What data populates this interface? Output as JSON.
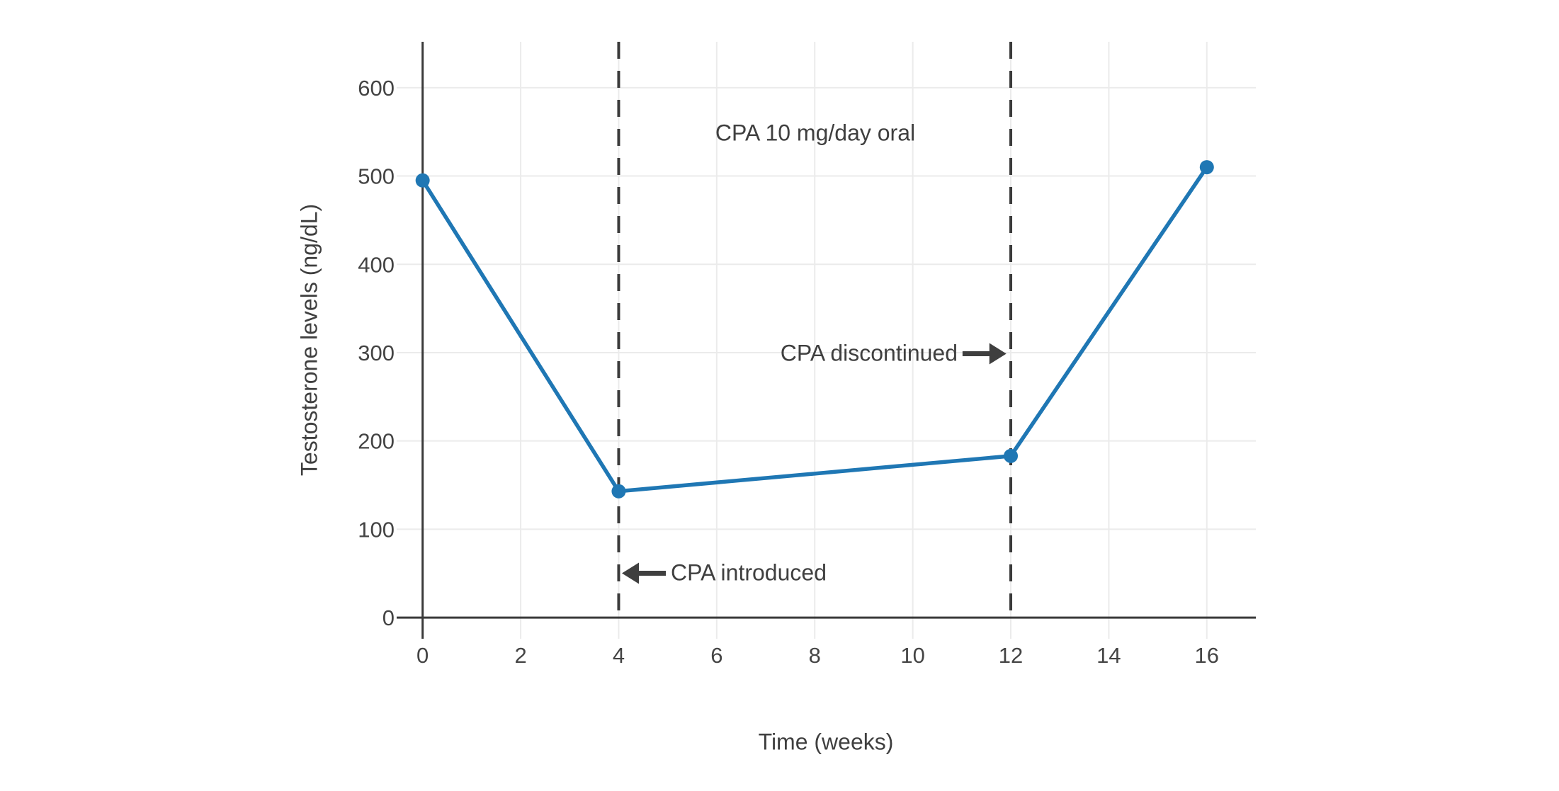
{
  "chart_data": {
    "type": "line",
    "series": [
      {
        "x": [
          0,
          4,
          12,
          16
        ],
        "values": [
          495,
          143,
          183,
          510
        ]
      }
    ],
    "xlabel": "Time (weeks)",
    "ylabel": "Testosterone levels (ng/dL)",
    "xticks": [
      0,
      2,
      4,
      6,
      8,
      10,
      12,
      14,
      16
    ],
    "yticks": [
      0,
      100,
      200,
      300,
      400,
      500,
      600
    ],
    "xlim": [
      -0.53,
      17.0
    ],
    "ylim": [
      -24,
      652
    ],
    "grid": true,
    "legend": "none",
    "vlines": [
      {
        "x": 4,
        "style": "dashed"
      },
      {
        "x": 12,
        "style": "dashed"
      }
    ],
    "annotations": [
      {
        "text": "CPA 10 mg/day oral",
        "x": 8,
        "y": 549,
        "arrow": "none"
      },
      {
        "text": "CPA introduced",
        "x": 4,
        "y": 50,
        "arrow": "left"
      },
      {
        "text": "CPA discontinued",
        "x": 12,
        "y": 299,
        "arrow": "right"
      }
    ],
    "colors": {
      "line": "#1f77b4",
      "marker": "#1f77b4",
      "grid": "#ebebeb",
      "zeroline": "#3a3a3a",
      "vline": "#3a3a3a",
      "tick_text": "#444444",
      "annotation_text": "#3f3f3f"
    }
  }
}
